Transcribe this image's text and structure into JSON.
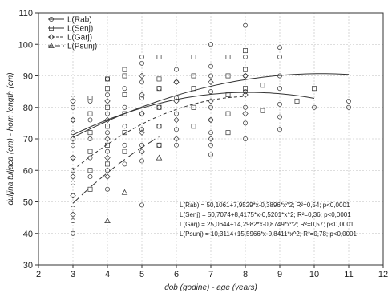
{
  "chart_data": {
    "type": "scatter",
    "xlabel": "dob (godine) - age (years)",
    "ylabel": "duljina tuljaca (cm) - horn length (cm)",
    "xlim": [
      2,
      12
    ],
    "ylim": [
      30,
      110
    ],
    "x_ticks": [
      2,
      3,
      4,
      5,
      6,
      7,
      8,
      9,
      10,
      11,
      12
    ],
    "y_ticks": [
      30,
      40,
      50,
      60,
      70,
      80,
      90,
      100,
      110
    ],
    "grid": true,
    "legend_position": "top-left",
    "series": [
      {
        "name": "L(Rab)",
        "marker": "circle",
        "line_style": "solid",
        "fit": {
          "a": 50.1061,
          "b": 7.9529,
          "c": -0.3896
        },
        "points": [
          [
            3,
            40
          ],
          [
            3,
            44
          ],
          [
            3,
            48
          ],
          [
            3,
            52
          ],
          [
            3,
            56
          ],
          [
            3,
            60
          ],
          [
            3,
            64
          ],
          [
            3,
            68
          ],
          [
            3,
            72
          ],
          [
            3,
            76
          ],
          [
            3,
            80
          ],
          [
            3,
            83
          ],
          [
            3.5,
            58
          ],
          [
            3.5,
            64
          ],
          [
            3.5,
            70
          ],
          [
            3.5,
            76
          ],
          [
            3.5,
            82
          ],
          [
            4,
            54
          ],
          [
            4,
            60
          ],
          [
            4,
            66
          ],
          [
            4,
            72
          ],
          [
            4,
            78
          ],
          [
            4,
            84
          ],
          [
            4,
            89
          ],
          [
            4.5,
            62
          ],
          [
            4.5,
            68
          ],
          [
            4.5,
            74
          ],
          [
            4.5,
            80
          ],
          [
            4.5,
            86
          ],
          [
            5,
            49
          ],
          [
            5,
            63
          ],
          [
            5,
            68
          ],
          [
            5,
            73
          ],
          [
            5,
            78
          ],
          [
            5,
            83
          ],
          [
            5,
            88
          ],
          [
            5,
            94
          ],
          [
            5,
            96
          ],
          [
            5.5,
            68
          ],
          [
            5.5,
            74
          ],
          [
            5.5,
            80
          ],
          [
            5.5,
            86
          ],
          [
            6,
            68
          ],
          [
            6,
            73
          ],
          [
            6,
            78
          ],
          [
            6,
            83
          ],
          [
            6,
            88
          ],
          [
            6,
            92
          ],
          [
            7,
            65
          ],
          [
            7,
            68
          ],
          [
            7,
            72
          ],
          [
            7,
            76
          ],
          [
            7,
            80
          ],
          [
            7,
            85
          ],
          [
            7,
            90
          ],
          [
            7,
            93
          ],
          [
            7,
            100
          ],
          [
            8,
            70
          ],
          [
            8,
            75
          ],
          [
            8,
            80
          ],
          [
            8,
            85
          ],
          [
            8,
            90
          ],
          [
            8,
            96
          ],
          [
            8,
            106
          ],
          [
            9,
            73
          ],
          [
            9,
            77
          ],
          [
            9,
            81
          ],
          [
            9,
            86
          ],
          [
            9,
            90
          ],
          [
            9,
            96
          ],
          [
            9,
            99
          ],
          [
            10,
            80
          ],
          [
            11,
            80
          ],
          [
            11,
            82
          ]
        ]
      },
      {
        "name": "L(Senj)",
        "marker": "square",
        "line_style": "solid",
        "fit": {
          "a": 50.7074,
          "b": 8.4175,
          "c": -0.5201
        },
        "points": [
          [
            3.5,
            54
          ],
          [
            3.5,
            60
          ],
          [
            3.5,
            66
          ],
          [
            3.5,
            72
          ],
          [
            3.5,
            78
          ],
          [
            3.5,
            83
          ],
          [
            4,
            62
          ],
          [
            4,
            68
          ],
          [
            4,
            74
          ],
          [
            4,
            80
          ],
          [
            4,
            86
          ],
          [
            4,
            89
          ],
          [
            4.5,
            66
          ],
          [
            4.5,
            72
          ],
          [
            4.5,
            78
          ],
          [
            4.5,
            84
          ],
          [
            4.5,
            90
          ],
          [
            4.5,
            92
          ],
          [
            5.5,
            68
          ],
          [
            5.5,
            74
          ],
          [
            5.5,
            80
          ],
          [
            5.5,
            86
          ],
          [
            5.5,
            89
          ],
          [
            5.5,
            96
          ],
          [
            6.5,
            74
          ],
          [
            6.5,
            80
          ],
          [
            6.5,
            86
          ],
          [
            6.5,
            90
          ],
          [
            6.5,
            96
          ],
          [
            7.5,
            72
          ],
          [
            7.5,
            78
          ],
          [
            7.5,
            84
          ],
          [
            7.5,
            90
          ],
          [
            7.5,
            96
          ],
          [
            8,
            86
          ],
          [
            8,
            92
          ],
          [
            8,
            98
          ],
          [
            8.5,
            79
          ],
          [
            8.5,
            87
          ],
          [
            9.5,
            82
          ],
          [
            10,
            86
          ]
        ]
      },
      {
        "name": "L(Garj)",
        "marker": "diamond",
        "line_style": "dashed",
        "fit": {
          "a": 25.0644,
          "b": 14.2982,
          "c": -0.8749
        },
        "points": [
          [
            3,
            46
          ],
          [
            3,
            52
          ],
          [
            3,
            58
          ],
          [
            3,
            64
          ],
          [
            3,
            70
          ],
          [
            3,
            76
          ],
          [
            3,
            82
          ],
          [
            4,
            58
          ],
          [
            4,
            64
          ],
          [
            4,
            70
          ],
          [
            4,
            76
          ],
          [
            4,
            82
          ],
          [
            5,
            66
          ],
          [
            5,
            72
          ],
          [
            5,
            78
          ],
          [
            5,
            84
          ],
          [
            5,
            90
          ],
          [
            6,
            70
          ],
          [
            6,
            76
          ],
          [
            6,
            82
          ],
          [
            6,
            88
          ],
          [
            7,
            70
          ],
          [
            7,
            76
          ],
          [
            7,
            82
          ],
          [
            7,
            88
          ],
          [
            8,
            78
          ],
          [
            8,
            84
          ],
          [
            8,
            90
          ]
        ]
      },
      {
        "name": "L(Psunj)",
        "marker": "triangle",
        "line_style": "long-dash",
        "fit": {
          "a": 10.3114,
          "b": 15.5966,
          "c": -0.8411
        },
        "points": [
          [
            4,
            44
          ],
          [
            4.5,
            53
          ],
          [
            5.5,
            64
          ]
        ]
      }
    ],
    "annotations": [
      "L(Rab) = 50,1061+7,9529*x-0,3896*x^2; R²=0,54; p<0,0001",
      "L(Senj) = 50,7074+8,4175*x-0,5201*x^2; R²=0,36; p<0,0001",
      "L(Garj) = 25,0644+14,2982*x-0,8749*x^2; R²=0,57; p<0,0001",
      "L(Psunj) = 10,3114+15,5966*x-0,8411*x^2; R²=0,78; p<0,0001"
    ],
    "colors": {
      "ink": "#333333",
      "grid": "#bdbdbd",
      "axis": "#333333"
    }
  }
}
